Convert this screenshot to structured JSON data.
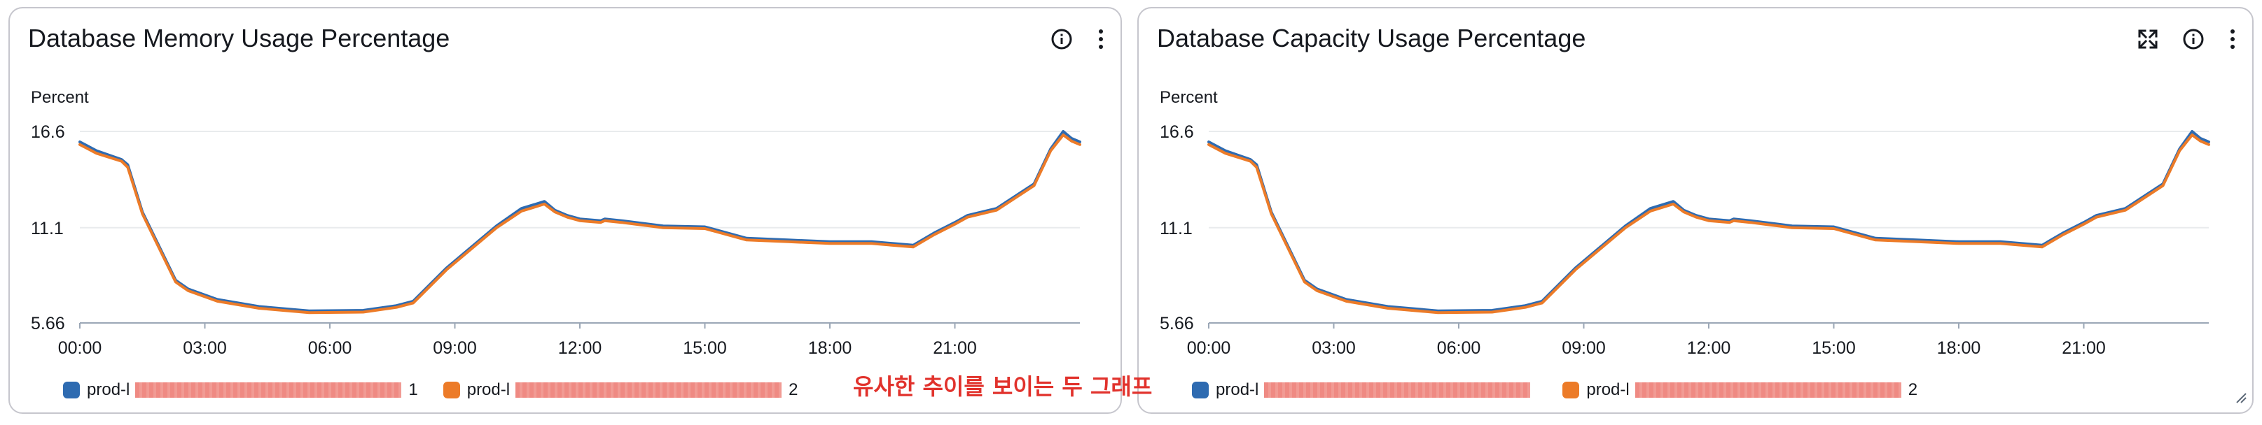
{
  "annotation": "유사한 추이를 보이는 두 그래프",
  "colors": {
    "series_blue": "#2e6bb1",
    "series_orange": "#ec7b28"
  },
  "panels": [
    {
      "title": "Database Memory Usage Percentage",
      "unit": "Percent",
      "icons": [
        "info-icon",
        "more-vertical-icon"
      ],
      "legend": [
        {
          "label": "prod-l",
          "suffix": "1"
        },
        {
          "label": "prod-l",
          "suffix": "2"
        }
      ]
    },
    {
      "title": "Database Capacity Usage Percentage",
      "unit": "Percent",
      "icons": [
        "expand-icon",
        "info-icon",
        "more-vertical-icon"
      ],
      "legend": [
        {
          "label": "prod-l",
          "suffix": ""
        },
        {
          "label": "prod-l",
          "suffix": "2"
        }
      ]
    }
  ],
  "chart_data": [
    {
      "type": "line",
      "title": "Database Memory Usage Percentage",
      "ylabel": "Percent",
      "ylim": [
        5.66,
        16.6
      ],
      "yticks": [
        "16.6",
        "11.1",
        "5.66"
      ],
      "xticks": [
        "00:00",
        "03:00",
        "06:00",
        "09:00",
        "12:00",
        "15:00",
        "18:00",
        "21:00"
      ],
      "xlim": [
        0,
        24
      ],
      "grid": true,
      "legend_position": "bottom",
      "series": [
        {
          "name": "prod-l…1",
          "x": [
            0,
            0.4,
            1.0,
            1.15,
            1.5,
            2.3,
            2.6,
            3.3,
            4.3,
            5.5,
            6.8,
            7.6,
            8.0,
            8.8,
            9.4,
            10.0,
            10.6,
            11.15,
            11.4,
            11.7,
            12.0,
            12.5,
            12.6,
            13.0,
            14.0,
            15.0,
            16.0,
            17.0,
            18.0,
            19.0,
            20.0,
            20.5,
            21.0,
            21.3,
            22.0,
            22.9,
            23.3,
            23.6,
            23.8,
            24.0
          ],
          "values": [
            16.0,
            15.5,
            15.0,
            14.7,
            12.0,
            8.1,
            7.6,
            7.0,
            6.6,
            6.35,
            6.38,
            6.65,
            6.9,
            8.8,
            10.0,
            11.2,
            12.2,
            12.6,
            12.1,
            11.8,
            11.6,
            11.5,
            11.6,
            11.5,
            11.2,
            11.15,
            10.5,
            10.4,
            10.3,
            10.3,
            10.1,
            10.8,
            11.4,
            11.8,
            12.2,
            13.6,
            15.6,
            16.6,
            16.2,
            16.0
          ]
        },
        {
          "name": "prod-l…2",
          "x": [
            0,
            0.4,
            1.0,
            1.15,
            1.5,
            2.3,
            2.6,
            3.3,
            4.3,
            5.5,
            6.8,
            7.6,
            8.0,
            8.8,
            9.4,
            10.0,
            10.6,
            11.15,
            11.4,
            11.7,
            12.0,
            12.5,
            12.6,
            13.0,
            14.0,
            15.0,
            16.0,
            17.0,
            18.0,
            19.0,
            20.0,
            20.5,
            21.0,
            21.3,
            22.0,
            22.9,
            23.3,
            23.6,
            23.8,
            24.0
          ],
          "values": [
            15.85,
            15.35,
            14.9,
            14.55,
            11.9,
            8.0,
            7.5,
            6.9,
            6.5,
            6.25,
            6.28,
            6.55,
            6.8,
            8.7,
            9.9,
            11.1,
            12.05,
            12.45,
            12.0,
            11.7,
            11.5,
            11.4,
            11.5,
            11.4,
            11.1,
            11.05,
            10.4,
            10.3,
            10.2,
            10.2,
            10.0,
            10.7,
            11.3,
            11.7,
            12.1,
            13.5,
            15.5,
            16.4,
            16.05,
            15.85
          ]
        }
      ]
    },
    {
      "type": "line",
      "title": "Database Capacity Usage Percentage",
      "ylabel": "Percent",
      "ylim": [
        5.66,
        16.6
      ],
      "yticks": [
        "16.6",
        "11.1",
        "5.66"
      ],
      "xticks": [
        "00:00",
        "03:00",
        "06:00",
        "09:00",
        "12:00",
        "15:00",
        "18:00",
        "21:00"
      ],
      "xlim": [
        0,
        24
      ],
      "grid": true,
      "legend_position": "bottom",
      "series": [
        {
          "name": "prod-l…",
          "x": [
            0,
            0.4,
            1.0,
            1.15,
            1.5,
            2.3,
            2.6,
            3.3,
            4.3,
            5.5,
            6.8,
            7.6,
            8.0,
            8.8,
            9.4,
            10.0,
            10.6,
            11.15,
            11.4,
            11.7,
            12.0,
            12.5,
            12.6,
            13.0,
            14.0,
            15.0,
            16.0,
            17.0,
            18.0,
            19.0,
            20.0,
            20.5,
            21.0,
            21.3,
            22.0,
            22.9,
            23.3,
            23.6,
            23.8,
            24.0
          ],
          "values": [
            16.0,
            15.5,
            15.0,
            14.7,
            12.0,
            8.1,
            7.6,
            7.0,
            6.6,
            6.35,
            6.38,
            6.65,
            6.9,
            8.8,
            10.0,
            11.2,
            12.2,
            12.6,
            12.1,
            11.8,
            11.6,
            11.5,
            11.6,
            11.5,
            11.2,
            11.15,
            10.5,
            10.4,
            10.3,
            10.3,
            10.1,
            10.8,
            11.4,
            11.8,
            12.2,
            13.6,
            15.6,
            16.6,
            16.2,
            16.0
          ]
        },
        {
          "name": "prod-l…2",
          "x": [
            0,
            0.4,
            1.0,
            1.15,
            1.5,
            2.3,
            2.6,
            3.3,
            4.3,
            5.5,
            6.8,
            7.6,
            8.0,
            8.8,
            9.4,
            10.0,
            10.6,
            11.15,
            11.4,
            11.7,
            12.0,
            12.5,
            12.6,
            13.0,
            14.0,
            15.0,
            16.0,
            17.0,
            18.0,
            19.0,
            20.0,
            20.5,
            21.0,
            21.3,
            22.0,
            22.9,
            23.3,
            23.6,
            23.8,
            24.0
          ],
          "values": [
            15.85,
            15.35,
            14.9,
            14.55,
            11.9,
            8.0,
            7.5,
            6.9,
            6.5,
            6.25,
            6.28,
            6.55,
            6.8,
            8.7,
            9.9,
            11.1,
            12.05,
            12.45,
            12.0,
            11.7,
            11.5,
            11.4,
            11.5,
            11.4,
            11.1,
            11.05,
            10.4,
            10.3,
            10.2,
            10.2,
            10.0,
            10.7,
            11.3,
            11.7,
            12.1,
            13.5,
            15.5,
            16.4,
            16.05,
            15.85
          ]
        }
      ]
    }
  ]
}
